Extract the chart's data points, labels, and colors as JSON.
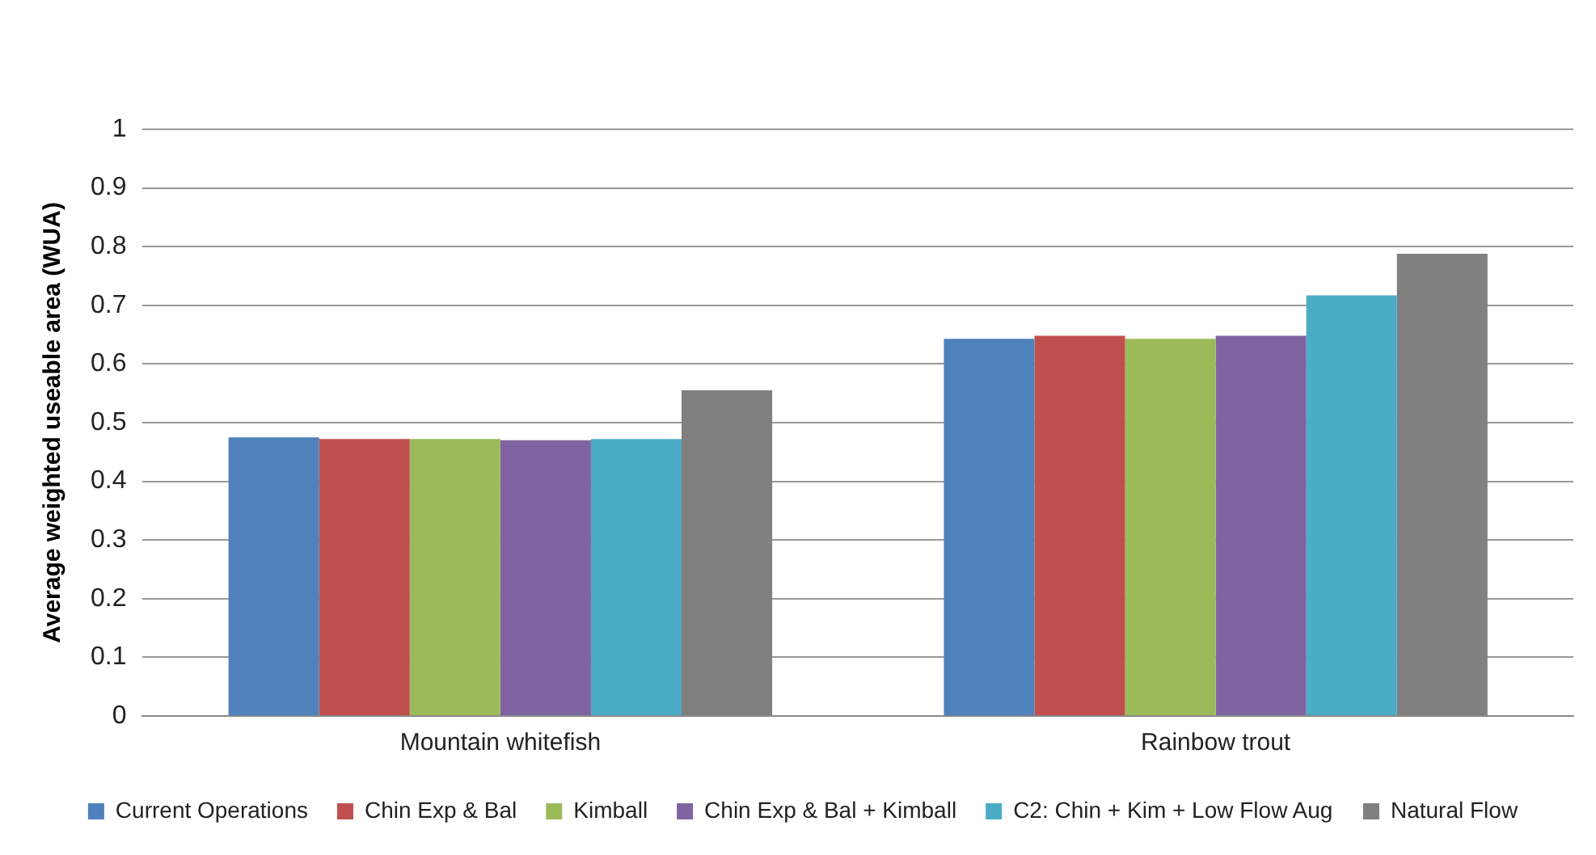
{
  "chart_data": {
    "type": "bar",
    "ylabel": "Average weighted useable area (WUA)",
    "categories": [
      "Mountain whitefish",
      "Rainbow trout"
    ],
    "series": [
      {
        "name": "Current Operations",
        "color": "#4f81bd",
        "values": [
          0.475,
          0.643
        ]
      },
      {
        "name": "Chin Exp & Bal",
        "color": "#c0504d",
        "values": [
          0.472,
          0.648
        ]
      },
      {
        "name": "Kimball",
        "color": "#9bbb59",
        "values": [
          0.472,
          0.643
        ]
      },
      {
        "name": "Chin Exp & Bal + Kimball",
        "color": "#8064a2",
        "values": [
          0.47,
          0.648
        ]
      },
      {
        "name": "C2: Chin + Kim + Low Flow Aug",
        "color": "#4bacc6",
        "values": [
          0.472,
          0.717
        ]
      },
      {
        "name": "Natural Flow",
        "color": "#808080",
        "values": [
          0.555,
          0.788
        ]
      }
    ],
    "ylim": [
      0,
      1
    ],
    "yticks": [
      0,
      0.1,
      0.2,
      0.3,
      0.4,
      0.5,
      0.6,
      0.7,
      0.8,
      0.9,
      1
    ],
    "grid": "y",
    "legend": "bottom"
  }
}
